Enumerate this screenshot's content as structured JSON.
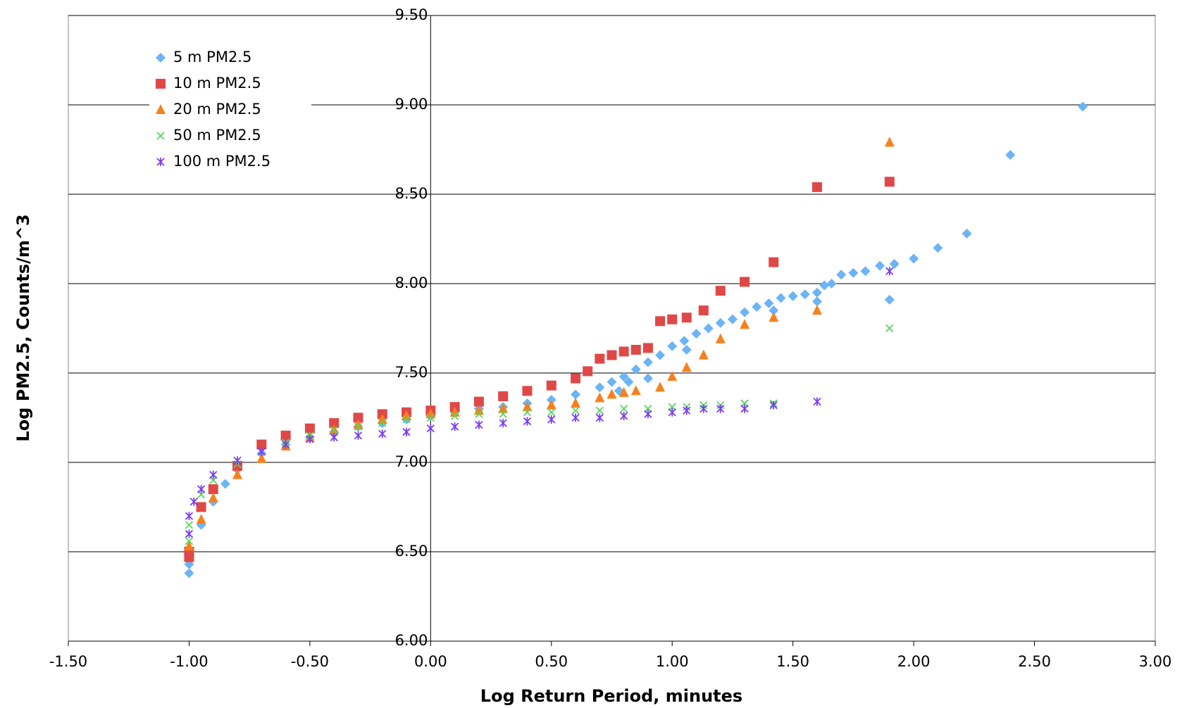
{
  "chart_data": {
    "type": "scatter",
    "xlabel": "Log Return Period, minutes",
    "ylabel": "Log PM2.5, Counts/m^3",
    "xlim": [
      -1.5,
      3.0
    ],
    "ylim": [
      6.0,
      9.5
    ],
    "xticks": [
      {
        "value": -1.5,
        "label": "-1.50"
      },
      {
        "value": -1.0,
        "label": "-1.00"
      },
      {
        "value": -0.5,
        "label": "-0.50"
      },
      {
        "value": 0,
        "label": "0.00"
      },
      {
        "value": 0.5,
        "label": "0.50"
      },
      {
        "value": 1.0,
        "label": "1.00"
      },
      {
        "value": 1.5,
        "label": "1.50"
      },
      {
        "value": 2.0,
        "label": "2.00"
      },
      {
        "value": 2.5,
        "label": "2.50"
      },
      {
        "value": 3.0,
        "label": "3.00"
      }
    ],
    "yticks": [
      {
        "value": 6.0,
        "label": "6.00"
      },
      {
        "value": 6.5,
        "label": "6.50"
      },
      {
        "value": 7.0,
        "label": "7.00"
      },
      {
        "value": 7.5,
        "label": "7.50"
      },
      {
        "value": 8.0,
        "label": "8.00"
      },
      {
        "value": 8.5,
        "label": "8.50"
      },
      {
        "value": 9.0,
        "label": "9.00"
      },
      {
        "value": 9.5,
        "label": "9.50"
      }
    ],
    "grid": true,
    "legend": "upper left",
    "series": [
      {
        "name": "5 m PM2.5",
        "color": "#6cb4f6",
        "marker": "diamond",
        "x": [
          -1.0,
          -1.0,
          -0.95,
          -0.9,
          -0.85,
          -0.8,
          -0.7,
          -0.6,
          -0.5,
          -0.4,
          -0.3,
          -0.2,
          -0.1,
          0.0,
          0.1,
          0.2,
          0.3,
          0.4,
          0.5,
          0.6,
          0.7,
          0.75,
          0.8,
          0.85,
          0.9,
          0.95,
          1.0,
          1.05,
          1.1,
          1.15,
          1.2,
          1.25,
          1.3,
          1.35,
          1.4,
          1.45,
          1.5,
          1.55,
          1.6,
          1.63,
          1.66,
          1.7,
          1.75,
          1.8,
          1.86,
          1.92,
          2.0,
          2.1,
          2.22,
          2.4,
          2.7,
          0.78,
          0.82,
          0.9,
          1.06,
          1.42,
          1.6,
          1.9
        ],
        "values": [
          6.38,
          6.43,
          6.65,
          6.78,
          6.88,
          6.96,
          7.05,
          7.1,
          7.14,
          7.17,
          7.2,
          7.22,
          7.24,
          7.26,
          7.28,
          7.3,
          7.31,
          7.33,
          7.35,
          7.38,
          7.42,
          7.45,
          7.48,
          7.52,
          7.56,
          7.6,
          7.65,
          7.68,
          7.72,
          7.75,
          7.78,
          7.8,
          7.84,
          7.87,
          7.89,
          7.92,
          7.93,
          7.94,
          7.95,
          7.99,
          8.0,
          8.05,
          8.06,
          8.07,
          8.1,
          8.11,
          8.14,
          8.2,
          8.28,
          8.72,
          8.99,
          7.4,
          7.45,
          7.47,
          7.63,
          7.85,
          7.9,
          7.91
        ]
      },
      {
        "name": "10 m PM2.5",
        "color": "#e04848",
        "marker": "square",
        "x": [
          -1.0,
          -1.0,
          -0.95,
          -0.9,
          -0.8,
          -0.7,
          -0.6,
          -0.5,
          -0.4,
          -0.3,
          -0.2,
          -0.1,
          0.0,
          0.1,
          0.2,
          0.3,
          0.4,
          0.5,
          0.6,
          0.65,
          0.7,
          0.75,
          0.8,
          0.85,
          0.9,
          0.95,
          1.0,
          1.06,
          1.13,
          1.2,
          1.3,
          1.42,
          1.6,
          1.9
        ],
        "values": [
          6.47,
          6.5,
          6.75,
          6.85,
          6.98,
          7.1,
          7.15,
          7.19,
          7.22,
          7.25,
          7.27,
          7.28,
          7.29,
          7.31,
          7.34,
          7.37,
          7.4,
          7.43,
          7.47,
          7.51,
          7.58,
          7.6,
          7.62,
          7.63,
          7.64,
          7.79,
          7.8,
          7.81,
          7.85,
          7.96,
          8.01,
          8.12,
          8.54,
          8.57
        ]
      },
      {
        "name": "20 m PM2.5",
        "color": "#f8801c",
        "marker": "triangle",
        "x": [
          -1.0,
          -0.95,
          -0.9,
          -0.8,
          -0.7,
          -0.6,
          -0.5,
          -0.4,
          -0.3,
          -0.2,
          -0.1,
          0.0,
          0.1,
          0.2,
          0.3,
          0.4,
          0.5,
          0.6,
          0.7,
          0.75,
          0.8,
          0.85,
          0.95,
          1.0,
          1.06,
          1.13,
          1.2,
          1.3,
          1.42,
          1.6,
          1.9
        ],
        "values": [
          6.53,
          6.68,
          6.8,
          6.93,
          7.02,
          7.09,
          7.14,
          7.18,
          7.21,
          7.24,
          7.26,
          7.27,
          7.28,
          7.29,
          7.3,
          7.31,
          7.32,
          7.33,
          7.36,
          7.38,
          7.39,
          7.4,
          7.42,
          7.48,
          7.53,
          7.6,
          7.69,
          7.77,
          7.81,
          7.85,
          8.79
        ]
      },
      {
        "name": "50 m PM2.5",
        "color": "#58d65a",
        "marker": "x",
        "x": [
          -1.0,
          -1.0,
          -0.95,
          -0.9,
          -0.8,
          -0.7,
          -0.6,
          -0.5,
          -0.4,
          -0.3,
          -0.2,
          -0.1,
          0.0,
          0.1,
          0.2,
          0.3,
          0.4,
          0.5,
          0.6,
          0.7,
          0.8,
          0.9,
          1.0,
          1.06,
          1.13,
          1.2,
          1.3,
          1.42,
          1.9
        ],
        "values": [
          6.56,
          6.65,
          6.82,
          6.9,
          6.99,
          7.06,
          7.11,
          7.15,
          7.18,
          7.2,
          7.22,
          7.24,
          7.25,
          7.26,
          7.27,
          7.27,
          7.28,
          7.28,
          7.29,
          7.29,
          7.3,
          7.3,
          7.31,
          7.31,
          7.32,
          7.32,
          7.33,
          7.33,
          7.75
        ]
      },
      {
        "name": "100 m PM2.5",
        "color": "#7a3cf0",
        "marker": "star",
        "x": [
          -1.0,
          -1.0,
          -0.98,
          -0.95,
          -0.9,
          -0.8,
          -0.7,
          -0.6,
          -0.5,
          -0.4,
          -0.3,
          -0.2,
          -0.1,
          0.0,
          0.1,
          0.2,
          0.3,
          0.4,
          0.5,
          0.6,
          0.7,
          0.8,
          0.9,
          1.0,
          1.06,
          1.13,
          1.2,
          1.3,
          1.42,
          1.6,
          1.9
        ],
        "values": [
          6.6,
          6.7,
          6.78,
          6.85,
          6.93,
          7.01,
          7.06,
          7.1,
          7.13,
          7.14,
          7.15,
          7.16,
          7.17,
          7.19,
          7.2,
          7.21,
          7.22,
          7.23,
          7.24,
          7.25,
          7.25,
          7.26,
          7.27,
          7.28,
          7.29,
          7.3,
          7.3,
          7.3,
          7.32,
          7.34,
          8.07
        ]
      }
    ]
  }
}
